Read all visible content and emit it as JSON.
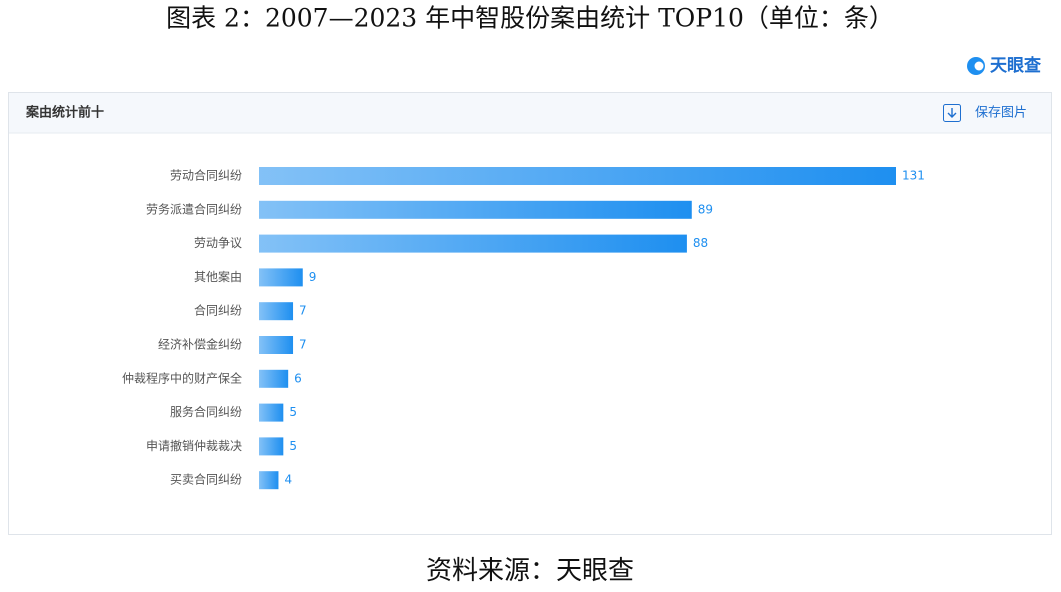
{
  "chart_data": {
    "type": "hbar",
    "title": "图表 2：2007—2023 年中智股份案由统计 TOP10（单位：条）",
    "categories": [
      "劳动合同纠纷",
      "劳务派遣合同纠纷",
      "劳动争议",
      "其他案由",
      "合同纠纷",
      "经济补偿金纠纷",
      "仲裁程序中的财产保全",
      "服务合同纠纷",
      "申请撤销仲裁裁决",
      "买卖合同纠纷"
    ],
    "values": [
      131,
      89,
      88,
      9,
      7,
      7,
      6,
      5,
      5,
      4
    ],
    "color": "#1e8ff0"
  },
  "header": {
    "logo": "天眼查",
    "panel_title": "案由统计前十",
    "save_button": "保存图片"
  },
  "source": "资料来源：天眼查"
}
